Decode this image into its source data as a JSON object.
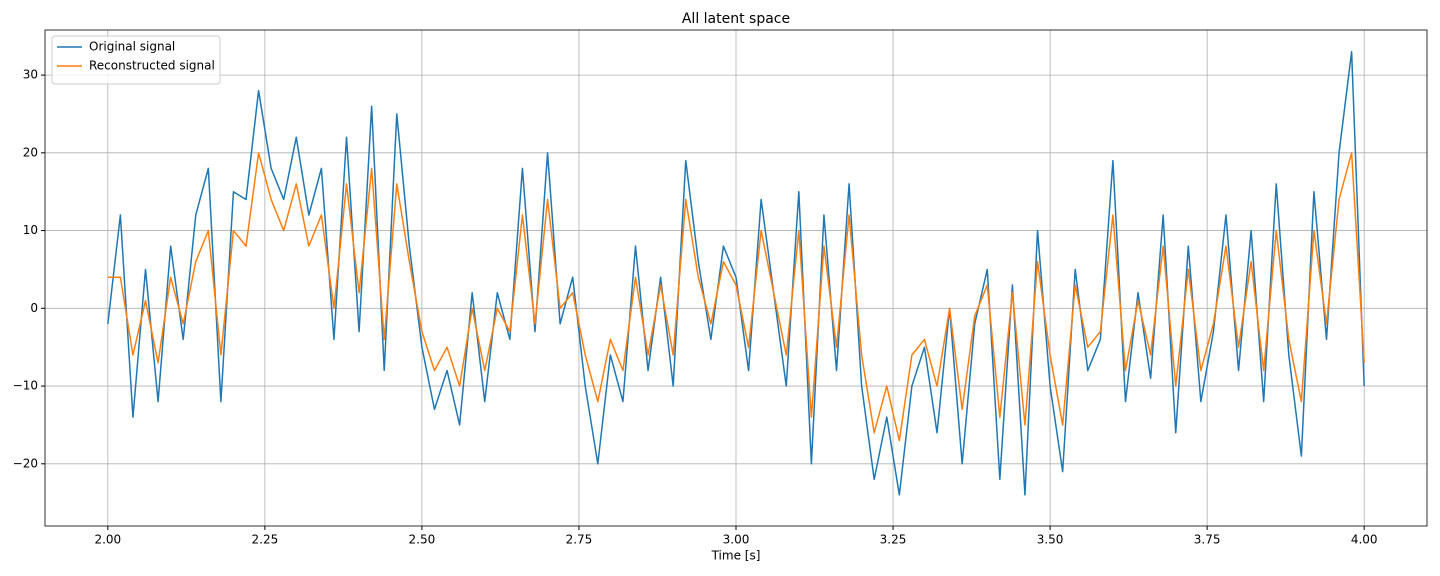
{
  "chart_data": {
    "type": "line",
    "title": "All latent space",
    "xlabel": "Time [s]",
    "x": [
      2.0,
      2.02,
      2.04,
      2.06,
      2.08,
      2.1,
      2.12,
      2.14,
      2.16,
      2.18,
      2.2,
      2.22,
      2.24,
      2.26,
      2.28,
      2.3,
      2.32,
      2.34,
      2.36,
      2.38,
      2.4,
      2.42,
      2.44,
      2.46,
      2.48,
      2.5,
      2.52,
      2.54,
      2.56,
      2.58,
      2.6,
      2.62,
      2.64,
      2.66,
      2.68,
      2.7,
      2.72,
      2.74,
      2.76,
      2.78,
      2.8,
      2.82,
      2.84,
      2.86,
      2.88,
      2.9,
      2.92,
      2.94,
      2.96,
      2.98,
      3.0,
      3.02,
      3.04,
      3.06,
      3.08,
      3.1,
      3.12,
      3.14,
      3.16,
      3.18,
      3.2,
      3.22,
      3.24,
      3.26,
      3.28,
      3.3,
      3.32,
      3.34,
      3.36,
      3.38,
      3.4,
      3.42,
      3.44,
      3.46,
      3.48,
      3.5,
      3.52,
      3.54,
      3.56,
      3.58,
      3.6,
      3.62,
      3.64,
      3.66,
      3.68,
      3.7,
      3.72,
      3.74,
      3.76,
      3.78,
      3.8,
      3.82,
      3.84,
      3.86,
      3.88,
      3.9,
      3.92,
      3.94,
      3.96,
      3.98,
      4.0
    ],
    "series": [
      {
        "name": "Original signal",
        "color": "#1f77b4",
        "values": [
          -2,
          12,
          -14,
          5,
          -12,
          8,
          -4,
          12,
          18,
          -12,
          15,
          14,
          28,
          18,
          14,
          22,
          12,
          18,
          -4,
          22,
          -3,
          26,
          -8,
          25,
          8,
          -5,
          -13,
          -8,
          -15,
          2,
          -12,
          2,
          -4,
          18,
          -3,
          20,
          -2,
          4,
          -10,
          -20,
          -6,
          -12,
          8,
          -8,
          4,
          -10,
          19,
          6,
          -4,
          8,
          4,
          -8,
          14,
          2,
          -10,
          15,
          -20,
          12,
          -8,
          16,
          -10,
          -22,
          -14,
          -24,
          -10,
          -5,
          -16,
          0,
          -20,
          -2,
          5,
          -22,
          3,
          -24,
          10,
          -10,
          -21,
          5,
          -8,
          -4,
          19,
          -12,
          2,
          -9,
          12,
          -16,
          8,
          -12,
          -3,
          12,
          -8,
          10,
          -12,
          16,
          -6,
          -19,
          15,
          -4,
          20,
          33,
          -10
        ]
      },
      {
        "name": "Reconstructed signal",
        "color": "#ff7f0e",
        "values": [
          4,
          4,
          -6,
          1,
          -7,
          4,
          -2,
          6,
          10,
          -6,
          10,
          8,
          20,
          14,
          10,
          16,
          8,
          12,
          0,
          16,
          2,
          18,
          -4,
          16,
          6,
          -3,
          -8,
          -5,
          -10,
          0,
          -8,
          0,
          -3,
          12,
          -2,
          14,
          0,
          2,
          -6,
          -12,
          -4,
          -8,
          4,
          -6,
          3,
          -6,
          14,
          4,
          -2,
          6,
          3,
          -5,
          10,
          2,
          -6,
          10,
          -14,
          8,
          -5,
          12,
          -6,
          -16,
          -10,
          -17,
          -6,
          -4,
          -10,
          0,
          -13,
          -1,
          3,
          -14,
          2,
          -15,
          6,
          -6,
          -15,
          3,
          -5,
          -3,
          12,
          -8,
          1,
          -6,
          8,
          -10,
          5,
          -8,
          -2,
          8,
          -5,
          6,
          -8,
          10,
          -4,
          -12,
          10,
          -2,
          14,
          20,
          -7
        ]
      }
    ],
    "xlim": [
      1.9,
      4.1
    ],
    "ylim": [
      -28,
      35.8
    ],
    "xticks": [
      {
        "value": 2,
        "label": "2.00"
      },
      {
        "value": 2.25,
        "label": "2.25"
      },
      {
        "value": 2.5,
        "label": "2.50"
      },
      {
        "value": 2.75,
        "label": "2.75"
      },
      {
        "value": 3,
        "label": "3.00"
      },
      {
        "value": 3.25,
        "label": "3.25"
      },
      {
        "value": 3.5,
        "label": "3.50"
      },
      {
        "value": 3.75,
        "label": "3.75"
      },
      {
        "value": 4,
        "label": "4.00"
      }
    ],
    "yticks": [
      {
        "value": -20,
        "label": "−20"
      },
      {
        "value": -10,
        "label": "−10"
      },
      0,
      10,
      20,
      30
    ],
    "grid": true,
    "legend": "upper left"
  }
}
